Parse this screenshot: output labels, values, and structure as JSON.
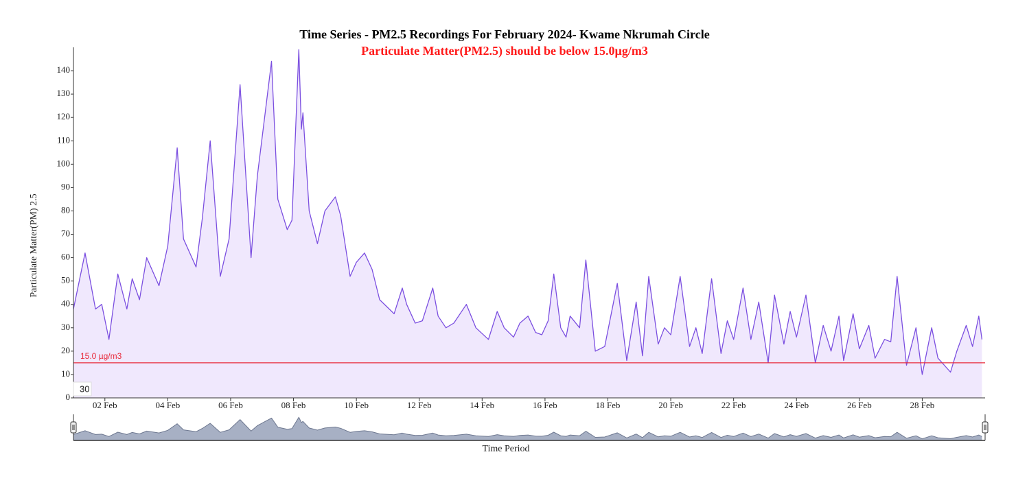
{
  "chart_data": {
    "type": "area",
    "title": "Time Series - PM2.5 Recordings For February 2024- Kwame Nkrumah Circle",
    "subtitle": "Particulate Matter(PM2.5) should be below 15.0µg/m3",
    "y_label": "Particulate Matter(PM) 2.5",
    "x_label": "Time Period",
    "range_label": "30",
    "threshold": {
      "value": 15,
      "label": "15.0 µg/m3",
      "color": "#e8293a"
    },
    "xlim": [
      1,
      30
    ],
    "xticks": [
      {
        "value": 2,
        "label": "02 Feb"
      },
      {
        "value": 4,
        "label": "04 Feb"
      },
      {
        "value": 6,
        "label": "06 Feb"
      },
      {
        "value": 8,
        "label": "08 Feb"
      },
      {
        "value": 10,
        "label": "10 Feb"
      },
      {
        "value": 12,
        "label": "12 Feb"
      },
      {
        "value": 14,
        "label": "14 Feb"
      },
      {
        "value": 16,
        "label": "16 Feb"
      },
      {
        "value": 18,
        "label": "18 Feb"
      },
      {
        "value": 20,
        "label": "20 Feb"
      },
      {
        "value": 22,
        "label": "22 Feb"
      },
      {
        "value": 24,
        "label": "24 Feb"
      },
      {
        "value": 26,
        "label": "26 Feb"
      },
      {
        "value": 28,
        "label": "28 Feb"
      }
    ],
    "ylim": [
      0,
      150
    ],
    "yticks": [
      0,
      10,
      20,
      30,
      40,
      50,
      60,
      70,
      80,
      90,
      100,
      110,
      120,
      130,
      140
    ],
    "series": [
      {
        "name": "PM2.5",
        "color": "#7b4fe0",
        "fill": "#f0e8fd",
        "x": [
          1.0,
          1.37,
          1.7,
          1.9,
          2.13,
          2.41,
          2.7,
          2.87,
          3.1,
          3.33,
          3.72,
          4.0,
          4.3,
          4.5,
          4.9,
          5.1,
          5.35,
          5.67,
          5.95,
          6.3,
          6.65,
          6.85,
          7.1,
          7.3,
          7.5,
          7.8,
          7.95,
          8.17,
          8.25,
          8.3,
          8.5,
          8.76,
          9.0,
          9.33,
          9.5,
          9.8,
          10.0,
          10.26,
          10.5,
          10.74,
          11.2,
          11.46,
          11.6,
          11.87,
          12.1,
          12.43,
          12.6,
          12.85,
          13.1,
          13.5,
          13.8,
          14.2,
          14.48,
          14.7,
          15.0,
          15.2,
          15.46,
          15.7,
          15.9,
          16.1,
          16.28,
          16.5,
          16.67,
          16.8,
          17.1,
          17.3,
          17.6,
          17.9,
          18.3,
          18.6,
          18.9,
          19.1,
          19.3,
          19.6,
          19.8,
          20.0,
          20.3,
          20.6,
          20.8,
          21.0,
          21.3,
          21.6,
          21.8,
          22.0,
          22.3,
          22.55,
          22.8,
          23.1,
          23.3,
          23.6,
          23.8,
          24.0,
          24.3,
          24.6,
          24.85,
          25.1,
          25.35,
          25.5,
          25.8,
          26.0,
          26.3,
          26.5,
          26.8,
          27.0,
          27.2,
          27.5,
          27.8,
          28.0,
          28.3,
          28.5,
          28.9,
          29.1,
          29.4,
          29.6,
          29.8,
          29.9
        ],
        "values": [
          38,
          62,
          38,
          40,
          25,
          53,
          38,
          51,
          42,
          60,
          48,
          65,
          107,
          68,
          56,
          77,
          110,
          52,
          68,
          134,
          60,
          95,
          122,
          144,
          85,
          72,
          76,
          149,
          115,
          122,
          80,
          66,
          80,
          86,
          78,
          52,
          58,
          62,
          55,
          42,
          36,
          47,
          40,
          32,
          33,
          47,
          35,
          30,
          32,
          40,
          30,
          25,
          37,
          30,
          26,
          32,
          35,
          28,
          27,
          33,
          53,
          30,
          26,
          35,
          30,
          59,
          20,
          22,
          49,
          16,
          41,
          18,
          52,
          23,
          30,
          27,
          52,
          22,
          30,
          19,
          51,
          19,
          33,
          25,
          47,
          25,
          41,
          15,
          44,
          23,
          37,
          26,
          44,
          15,
          31,
          20,
          35,
          16,
          36,
          21,
          31,
          17,
          25,
          24,
          52,
          14,
          30,
          10,
          30,
          17,
          11,
          20,
          31,
          22,
          35,
          25
        ]
      }
    ]
  }
}
